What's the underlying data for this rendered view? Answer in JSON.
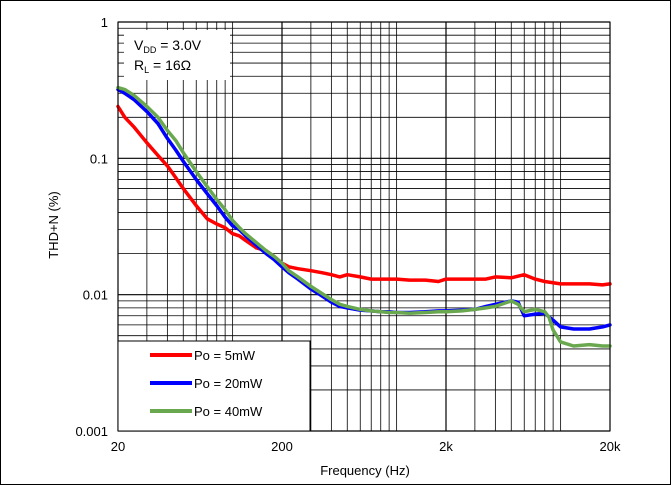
{
  "chart_data": {
    "type": "line",
    "xlabel": "Frequency (Hz)",
    "ylabel": "THD+N (%)",
    "x_scale": "log",
    "y_scale": "log",
    "xlim": [
      20,
      20000
    ],
    "ylim": [
      0.001,
      1
    ],
    "grid": true,
    "legend_position": "bottom-left",
    "x_tick_labels": [
      {
        "value": 20,
        "label": "20"
      },
      {
        "value": 200,
        "label": "200"
      },
      {
        "value": 2000,
        "label": "2k"
      },
      {
        "value": 20000,
        "label": "20k"
      }
    ],
    "y_tick_labels": [
      {
        "value": 0.001,
        "label": "0.001"
      },
      {
        "value": 0.01,
        "label": "0.01"
      },
      {
        "value": 0.1,
        "label": "0.1"
      },
      {
        "value": 1,
        "label": "1"
      }
    ],
    "annotation": {
      "vdd_main": "V",
      "vdd_sub": "DD",
      "vdd_value": " = 3.0V",
      "rl_main": "R",
      "rl_sub": "L",
      "rl_value": " = 16Ω"
    },
    "series": [
      {
        "name": "Po = 5mW",
        "color": "#ff0000",
        "x": [
          20,
          22,
          25,
          30,
          35,
          40,
          45,
          50,
          60,
          70,
          80,
          90,
          100,
          110,
          120,
          140,
          160,
          180,
          200,
          220,
          250,
          300,
          350,
          400,
          450,
          500,
          600,
          700,
          800,
          900,
          1000,
          1200,
          1500,
          1800,
          2000,
          2500,
          3000,
          3500,
          4000,
          5000,
          6000,
          7000,
          8000,
          10000,
          12000,
          15000,
          18000,
          20000
        ],
        "y": [
          0.24,
          0.2,
          0.17,
          0.13,
          0.105,
          0.088,
          0.072,
          0.06,
          0.045,
          0.036,
          0.033,
          0.031,
          0.028,
          0.027,
          0.025,
          0.022,
          0.021,
          0.019,
          0.017,
          0.016,
          0.0155,
          0.015,
          0.0145,
          0.014,
          0.0135,
          0.014,
          0.0135,
          0.013,
          0.013,
          0.013,
          0.013,
          0.0128,
          0.0128,
          0.0125,
          0.013,
          0.013,
          0.013,
          0.013,
          0.0135,
          0.0133,
          0.014,
          0.013,
          0.0125,
          0.012,
          0.012,
          0.012,
          0.0118,
          0.012
        ]
      },
      {
        "name": "Po = 20mW",
        "color": "#0000ff",
        "x": [
          20,
          22,
          25,
          30,
          35,
          40,
          45,
          50,
          60,
          70,
          80,
          90,
          100,
          110,
          120,
          140,
          160,
          180,
          200,
          220,
          250,
          300,
          350,
          400,
          450,
          500,
          600,
          700,
          800,
          900,
          1000,
          1200,
          1500,
          1800,
          2000,
          2500,
          3000,
          3500,
          4000,
          5000,
          5500,
          6000,
          7000,
          8000,
          9000,
          10000,
          12000,
          15000,
          18000,
          20000
        ],
        "y": [
          0.32,
          0.3,
          0.27,
          0.22,
          0.18,
          0.14,
          0.115,
          0.095,
          0.07,
          0.055,
          0.045,
          0.037,
          0.032,
          0.03,
          0.027,
          0.023,
          0.02,
          0.018,
          0.016,
          0.0145,
          0.013,
          0.011,
          0.0098,
          0.0088,
          0.0082,
          0.008,
          0.0077,
          0.0076,
          0.0075,
          0.0075,
          0.0074,
          0.0074,
          0.0075,
          0.0076,
          0.0076,
          0.0077,
          0.0078,
          0.0082,
          0.0085,
          0.009,
          0.0088,
          0.007,
          0.0072,
          0.0073,
          0.0065,
          0.0058,
          0.0056,
          0.0056,
          0.0058,
          0.006
        ]
      },
      {
        "name": "Po = 40mW",
        "color": "#6aa84f",
        "x": [
          20,
          22,
          25,
          30,
          35,
          40,
          45,
          50,
          60,
          70,
          80,
          90,
          100,
          110,
          120,
          140,
          160,
          180,
          200,
          220,
          250,
          300,
          350,
          400,
          450,
          500,
          600,
          700,
          800,
          900,
          1000,
          1200,
          1500,
          1800,
          2000,
          2500,
          3000,
          3500,
          4000,
          5000,
          5500,
          6000,
          7000,
          8000,
          8500,
          9000,
          10000,
          12000,
          15000,
          18000,
          20000
        ],
        "y": [
          0.33,
          0.32,
          0.29,
          0.24,
          0.2,
          0.16,
          0.135,
          0.11,
          0.08,
          0.062,
          0.05,
          0.042,
          0.035,
          0.031,
          0.028,
          0.024,
          0.021,
          0.019,
          0.017,
          0.015,
          0.0135,
          0.0115,
          0.0102,
          0.0092,
          0.0085,
          0.0082,
          0.0078,
          0.0076,
          0.0075,
          0.0074,
          0.0074,
          0.0073,
          0.0074,
          0.0075,
          0.0075,
          0.0076,
          0.0078,
          0.008,
          0.0082,
          0.009,
          0.0085,
          0.0075,
          0.0078,
          0.0075,
          0.0068,
          0.0055,
          0.0045,
          0.0042,
          0.0043,
          0.0042,
          0.0042
        ]
      }
    ]
  }
}
